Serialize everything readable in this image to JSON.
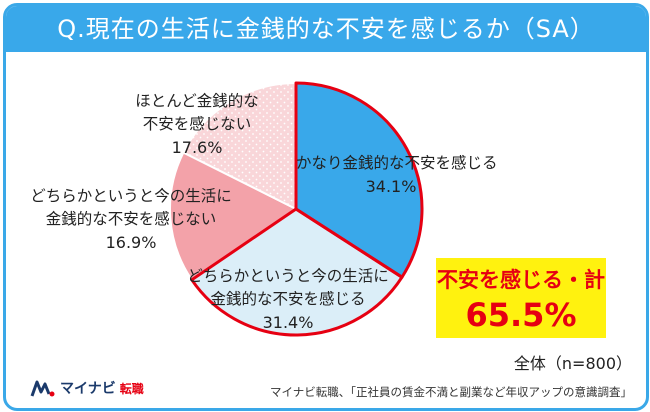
{
  "header": {
    "title": "Q.現在の生活に金銭的な不安を感じるか（SA）"
  },
  "colors": {
    "header_bg": "#39a8ea",
    "slice_1": "#39a8ea",
    "slice_2": "#dbeef8",
    "slice_3": "#f3a2a9",
    "slice_4": "#f9d6d9",
    "highlight_border": "#e60012",
    "callout_bg": "#fff20f",
    "callout_text": "#e60012"
  },
  "chart_data": {
    "type": "pie",
    "title": "Q.現在の生活に金銭的な不安を感じるか（SA）",
    "slices": [
      {
        "label_lines": [
          "かなり金銭的な不安を感じる"
        ],
        "value": 34.1,
        "value_label": "34.1%",
        "color": "#39a8ea",
        "highlighted": true
      },
      {
        "label_lines": [
          "どちらかというと今の生活に",
          "金銭的な不安を感じる"
        ],
        "value": 31.4,
        "value_label": "31.4%",
        "color": "#dbeef8",
        "highlighted": true
      },
      {
        "label_lines": [
          "どちらかというと今の生活に",
          "金銭的な不安を感じない"
        ],
        "value": 16.9,
        "value_label": "16.9%",
        "color": "#f3a2a9",
        "highlighted": false
      },
      {
        "label_lines": [
          "ほとんど金銭的な",
          "不安を感じない"
        ],
        "value": 17.6,
        "value_label": "17.6%",
        "color": "#f9d6d9",
        "pattern": "dots",
        "highlighted": false
      }
    ],
    "callout": {
      "label": "不安を感じる・計",
      "value": "65.5%"
    },
    "start_angle": "12 o'clock",
    "direction": "clockwise"
  },
  "footer": {
    "sample": "全体（n=800）",
    "source": "マイナビ転職、「正社員の賃金不満と副業など年収アップの意識調査」",
    "logo_brand": "マイナビ",
    "logo_sub": "転職"
  }
}
